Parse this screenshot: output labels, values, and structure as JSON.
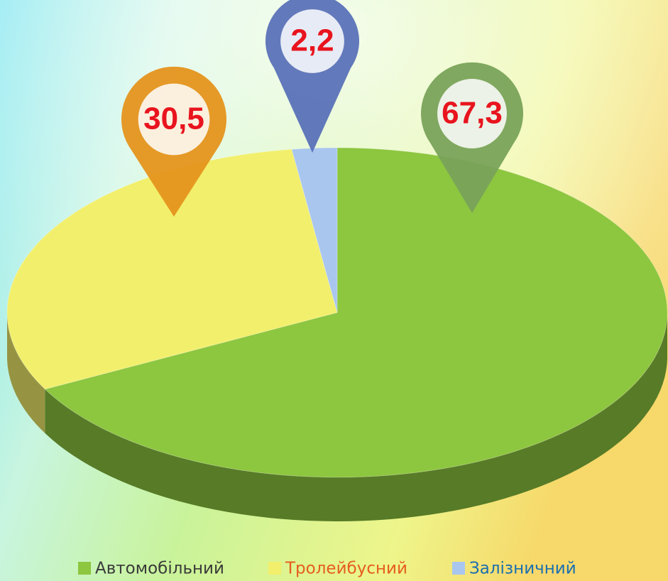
{
  "chart_data": {
    "type": "pie3d",
    "categories": [
      "Автомобільний",
      "Тролейбусний",
      "Залізничний"
    ],
    "values": [
      67.3,
      30.5,
      2.2
    ],
    "value_labels": [
      "67,3",
      "30,5",
      "2,2"
    ],
    "colors": [
      "#8dc63f",
      "#f2ef6c",
      "#a9c6ef"
    ],
    "legend": "bottom"
  }
}
